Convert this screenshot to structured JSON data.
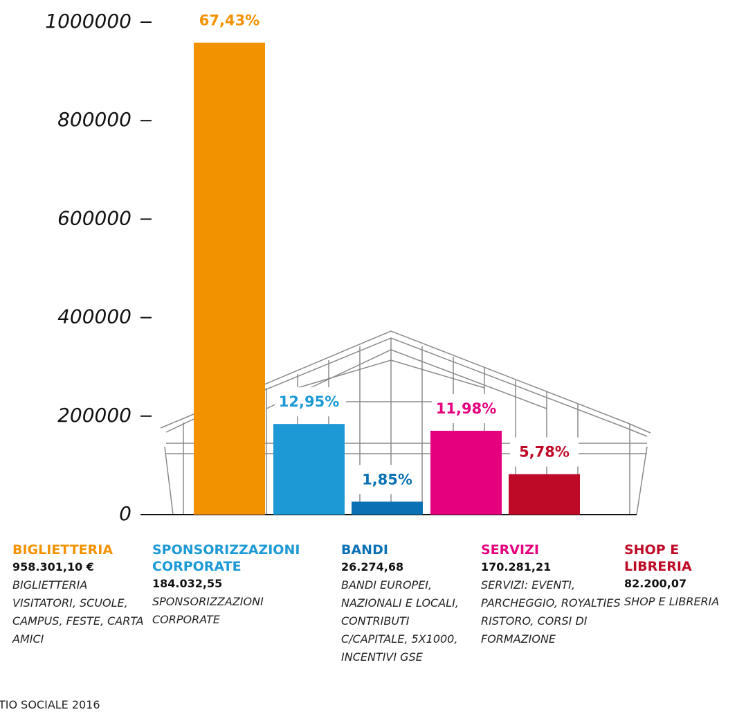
{
  "chart_data": {
    "type": "bar",
    "categories": [
      "BIGLIETTERIA",
      "SPONSORIZZAZIONI CORPORATE",
      "BANDI",
      "SERVIZI",
      "SHOP E LIBRERIA"
    ],
    "values": [
      958301.1,
      184032.55,
      26274.68,
      170281.21,
      82200.07
    ],
    "value_labels": [
      "958.301,10 €",
      "184.032,55",
      "26.274,68",
      "170.281,21",
      "82.200,07"
    ],
    "percentages": [
      67.43,
      12.95,
      1.85,
      11.98,
      5.78
    ],
    "percentage_labels": [
      "67,43%",
      "12,95%",
      "1,85%",
      "11,98%",
      "5,78%"
    ],
    "descriptions": [
      "BIGLIETTERIA VISITATORI, SCUOLE, CAMPUS, FESTE, CARTA AMICI",
      "SPONSORIZZAZIONI CORPORATE",
      "BANDI EUROPEI, NAZIONALI E LOCALI, CONTRIBUTI C/CAPITALE, 5X1000, INCENTIVI GSE",
      "SERVIZI: EVENTI, PARCHEGGIO, ROYALTIES RISTORO, CORSI DI FORMAZIONE",
      "SHOP E LIBRERIA"
    ],
    "colors": [
      "#f39200",
      "#1d9ad6",
      "#0b71b4",
      "#e5007e",
      "#be0a26"
    ],
    "ylim": [
      0,
      1000000
    ],
    "yticks": [
      0,
      200000,
      400000,
      600000,
      800000,
      1000000
    ],
    "grid": false
  },
  "footer": "TIO SOCIALE 2016"
}
